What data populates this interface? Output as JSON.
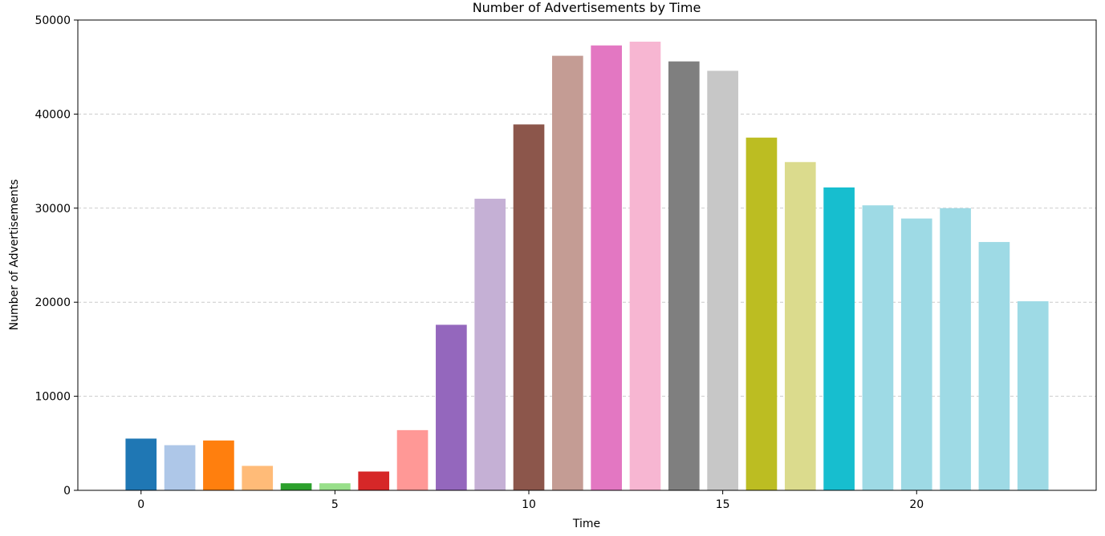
{
  "chart_data": {
    "type": "bar",
    "title": "Number of Advertisements by Time",
    "xlabel": "Time",
    "ylabel": "Number of Advertisements",
    "x": [
      0,
      1,
      2,
      3,
      4,
      5,
      6,
      7,
      8,
      9,
      10,
      11,
      12,
      13,
      14,
      15,
      16,
      17,
      18,
      19,
      20,
      21,
      22,
      23
    ],
    "values": [
      5500,
      4800,
      5300,
      2600,
      750,
      750,
      2000,
      6400,
      17600,
      31000,
      38900,
      46200,
      47300,
      47700,
      45600,
      44600,
      37500,
      34900,
      32200,
      30300,
      28900,
      30000,
      26400,
      20100
    ],
    "colors": [
      "#1f77b4",
      "#aec7e8",
      "#ff7f0e",
      "#ffbb78",
      "#2ca02c",
      "#98df8a",
      "#d62728",
      "#ff9896",
      "#9467bd",
      "#c5b0d5",
      "#8c564b",
      "#c49c94",
      "#e377c2",
      "#f7b6d2",
      "#7f7f7f",
      "#c7c7c7",
      "#bcbd22",
      "#dbdb8d",
      "#17becf",
      "#9edae5",
      "#9edae5",
      "#9edae5",
      "#9edae5",
      "#9edae5"
    ],
    "xlim": [
      -1.63,
      24.63
    ],
    "ylim": [
      0,
      50000
    ],
    "xticks": [
      0,
      5,
      10,
      15,
      20
    ],
    "xtick_labels": [
      "0",
      "5",
      "10",
      "15",
      "20"
    ],
    "yticks": [
      0,
      10000,
      20000,
      30000,
      40000,
      50000
    ],
    "ytick_labels": [
      "0",
      "10000",
      "20000",
      "30000",
      "40000",
      "50000"
    ],
    "grid": "y-dashed",
    "grid_color": "#cccccc",
    "legend": "none"
  }
}
